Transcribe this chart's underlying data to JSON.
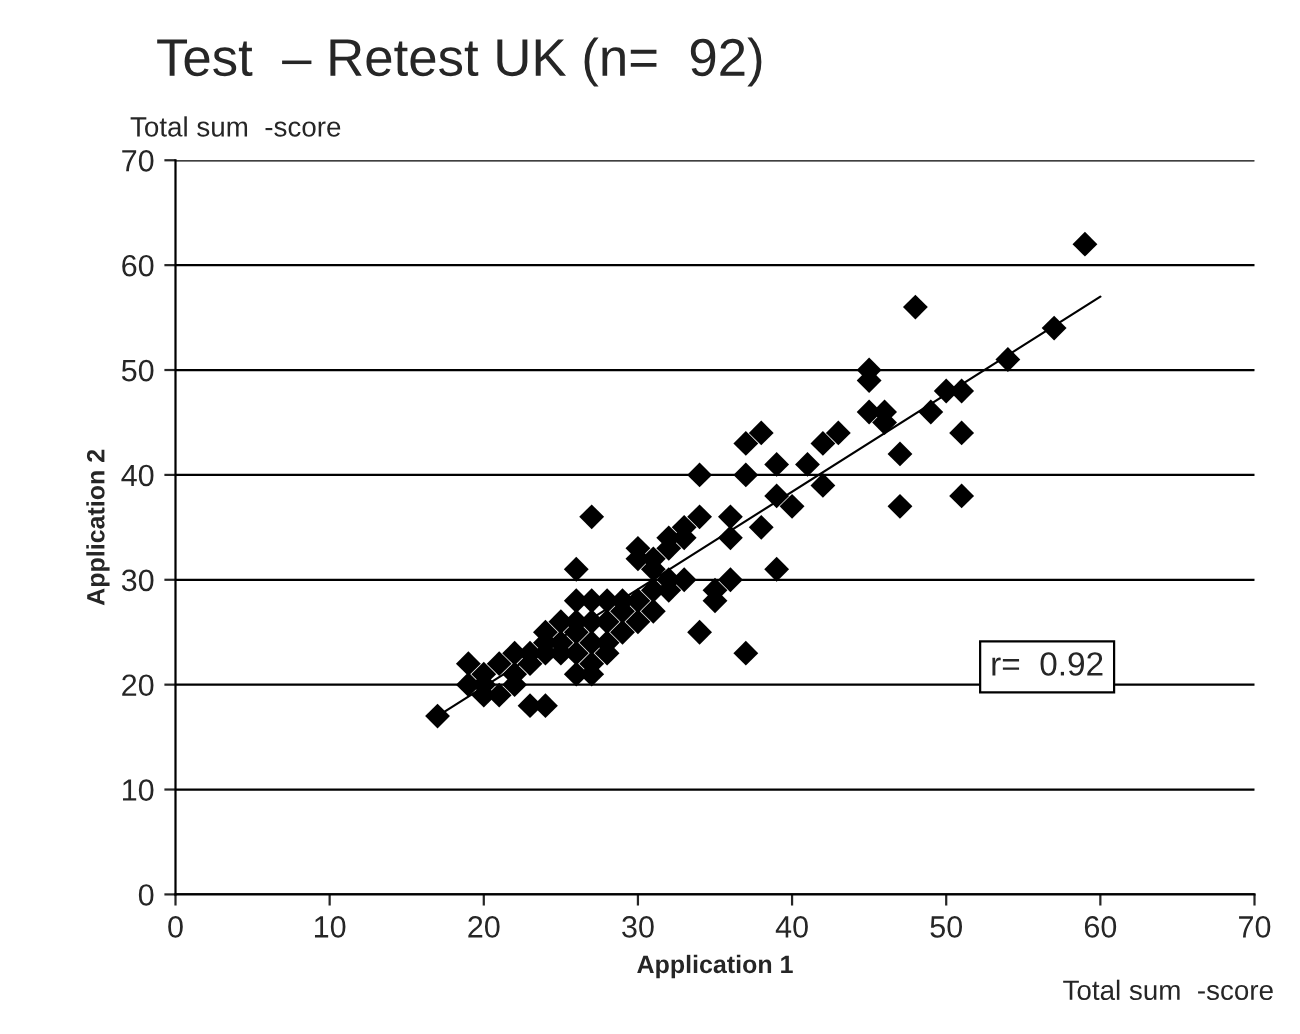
{
  "chart_data": {
    "type": "scatter",
    "title": "Test  – Retest UK (n=  92)",
    "xlabel": "Application 1",
    "ylabel": "Application 2",
    "annotations": [
      "Total sum  -score",
      "Total sum  -score",
      "r=  0.92"
    ],
    "xlim": [
      0,
      70
    ],
    "ylim": [
      0,
      70
    ],
    "xticks": [
      0,
      10,
      20,
      30,
      40,
      50,
      60,
      70
    ],
    "yticks": [
      0,
      10,
      20,
      30,
      40,
      50,
      60,
      70
    ],
    "grid": "y",
    "legend": false,
    "marker": "diamond",
    "series": [
      {
        "color": "#000000",
        "x": [
          17,
          19,
          19,
          20,
          20,
          20,
          21,
          21,
          22,
          22,
          23,
          23,
          23,
          24,
          24,
          24,
          24,
          25,
          25,
          26,
          26,
          26,
          27,
          27,
          27,
          27,
          26,
          27,
          28,
          28,
          28,
          26,
          27,
          29,
          29,
          29,
          30,
          30,
          30,
          30,
          31,
          31,
          31,
          31,
          32,
          32,
          32,
          32,
          33,
          33,
          33,
          34,
          34,
          34,
          35,
          35,
          36,
          36,
          37,
          37,
          37,
          38,
          38,
          39,
          39,
          39,
          40,
          41,
          42,
          42,
          43,
          45,
          45,
          45,
          46,
          46,
          47,
          47,
          48,
          49,
          50,
          51,
          51,
          51,
          54,
          57,
          59,
          36,
          26,
          22,
          25,
          28
        ],
        "values": [
          17,
          20,
          22,
          19,
          20,
          21,
          19,
          22,
          20,
          21,
          22,
          23,
          18,
          18,
          23,
          24,
          25,
          24,
          23,
          25,
          26,
          23,
          24,
          22,
          26,
          21,
          28,
          28,
          28,
          26,
          23,
          31,
          36,
          25,
          27,
          28,
          26,
          28,
          32,
          33,
          29,
          27,
          31,
          32,
          29,
          30,
          33,
          34,
          30,
          34,
          35,
          36,
          25,
          40,
          28,
          29,
          34,
          36,
          23,
          40,
          43,
          44,
          35,
          38,
          31,
          41,
          37,
          41,
          43,
          39,
          44,
          49,
          50,
          46,
          45,
          46,
          37,
          42,
          56,
          46,
          48,
          48,
          44,
          38,
          51,
          54,
          62,
          30,
          21,
          23,
          26,
          24
        ]
      },
      {
        "type": "line",
        "color": "#000000",
        "marker": "none",
        "x": [
          17,
          60
        ],
        "values": [
          17,
          57
        ]
      }
    ]
  }
}
